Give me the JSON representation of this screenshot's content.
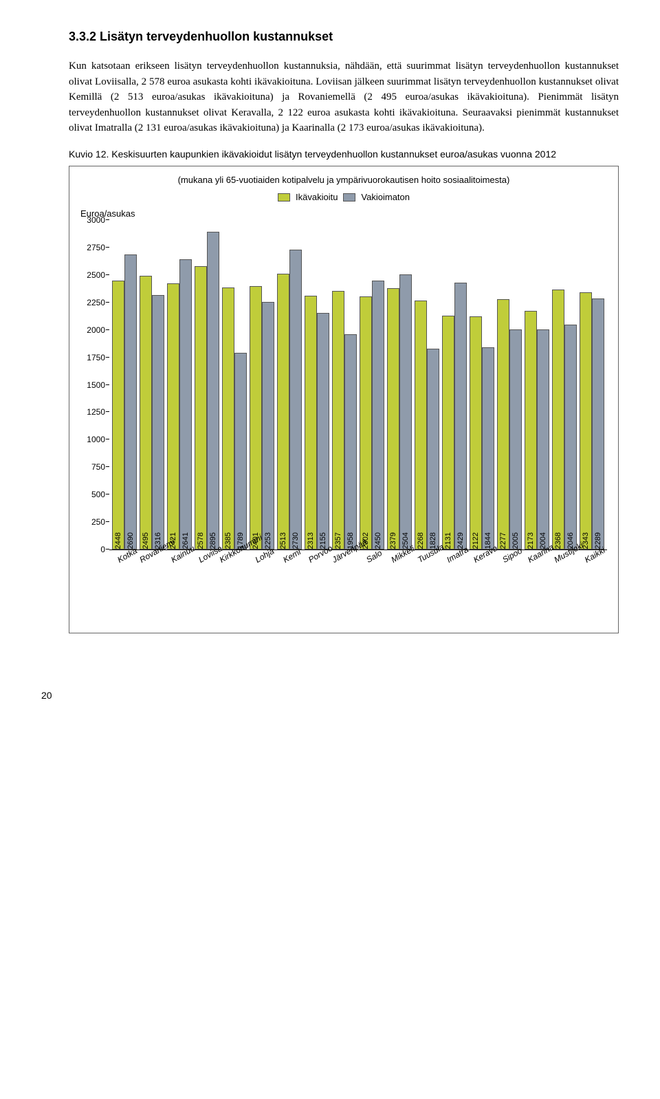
{
  "heading": "3.3.2   Lisätyn terveydenhuollon kustannukset",
  "paragraph": "Kun katsotaan erikseen lisätyn terveydenhuollon kustannuksia, nähdään, että suurimmat lisätyn terveydenhuollon kustannukset olivat Loviisalla, 2 578 euroa asukasta kohti ikävakioituna. Loviisan jälkeen suurimmat lisätyn terveydenhuollon kustannukset olivat Kemillä (2 513 euroa/asukas ikävakioituna) ja Rovaniemellä (2 495 euroa/asukas ikävakioituna). Pienimmät lisätyn terveydenhuollon kustannukset olivat Keravalla, 2 122 euroa asukasta kohti ikävakioituna. Seuraavaksi pienimmät kustannukset olivat Imatralla (2 131 euroa/asukas ikävakioituna) ja Kaarinalla (2 173 euroa/asukas ikävakioituna).",
  "figure_caption": "Kuvio 12. Keskisuurten kaupunkien ikävakioidut lisätyn terveydenhuollon kustannukset euroa/asukas vuonna 2012",
  "chart": {
    "type": "bar",
    "note": "(mukana yli 65-vuotiaiden kotipalvelu ja ympärivuorokautisen hoito sosiaalitoimesta)",
    "ylabel": "Euroa/asukas",
    "ylim": [
      0,
      3000
    ],
    "ytick_step": 250,
    "legend": [
      {
        "label": "Ikävakioitu",
        "color": "#c0cd3a"
      },
      {
        "label": "Vakioimaton",
        "color": "#8f9bab"
      }
    ],
    "background_color": "#ffffff",
    "categories": [
      "Kotka",
      "Rovaniemi",
      "Kainuu",
      "Loviisa",
      "Kirkkonummi",
      "Lohja",
      "Kemi",
      "Porvoo",
      "Järvenpää",
      "Salo",
      "Mikkeli",
      "Tuusula",
      "Imatra",
      "Kerava",
      "Sipoo",
      "Kaarina",
      "Mustijoki",
      "Kaikki"
    ],
    "series1_values": [
      2448,
      2495,
      2421,
      2578,
      2385,
      2401,
      2513,
      2313,
      2357,
      2302,
      2379,
      2268,
      2131,
      2122,
      2277,
      2173,
      2368,
      2343
    ],
    "series2_values": [
      2690,
      2316,
      2641,
      2895,
      1789,
      2253,
      2730,
      2155,
      1958,
      2450,
      2504,
      1828,
      2429,
      1844,
      2005,
      2004,
      2046,
      2289
    ],
    "series1_color": "#c0cd3a",
    "series2_color": "#8f9bab",
    "label_fontsize": 11,
    "axis_color": "#000000",
    "bar_border": "#555555"
  },
  "page_number": "20"
}
